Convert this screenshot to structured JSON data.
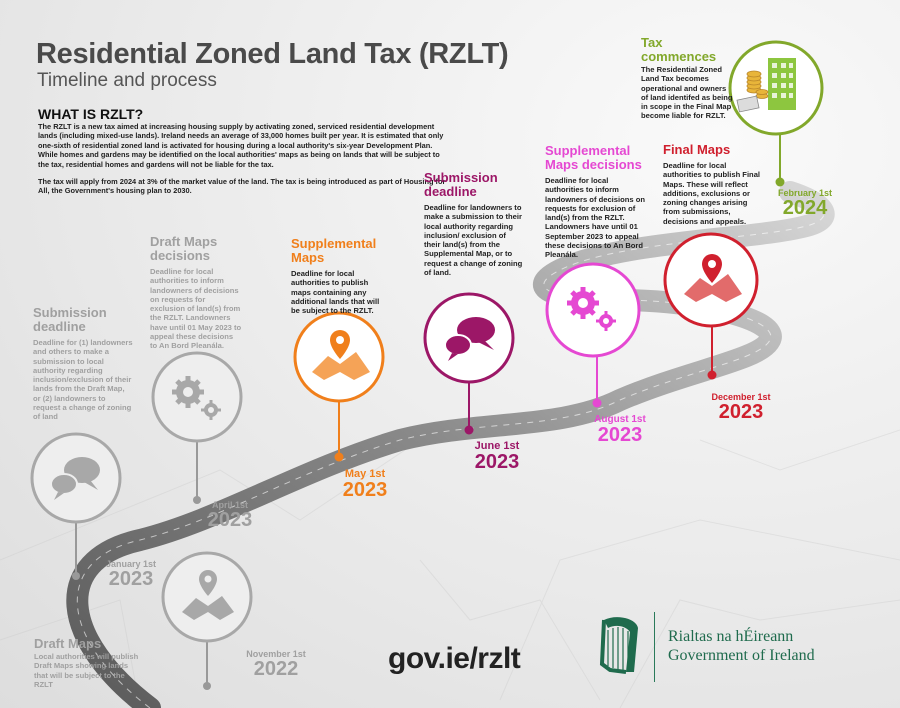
{
  "header": {
    "title": "Residential Zoned Land Tax (RZLT)",
    "subtitle": "Timeline and process"
  },
  "intro": {
    "heading": "WHAT IS RZLT?",
    "paragraph_1": "The RZLT is a new tax aimed at increasing housing supply by activating zoned, serviced residential development lands (including mixed-use lands). Ireland needs an average of 33,000 homes built per year. It is estimated that only one-sixth of residential zoned land is activated for housing during a local authority's six-year Development Plan. While homes and gardens may be identified on the local authorities' maps as being on lands that will be subject to the tax, residential homes and gardens will not be liable for the tax.",
    "paragraph_2": "The tax will apply from 2024 at 3% of the market value of the land. The tax is being introduced as part of Housing for All, the Government's housing plan to 2030."
  },
  "milestones": {
    "draft_maps": {
      "title": "Draft Maps",
      "desc": "Local authorities will publish Draft Maps showing lands that will be subject to the RZLT",
      "date": "November 1st",
      "year": "2022",
      "icon": "map-pin-icon",
      "color": "#a0a0a0"
    },
    "submission_1": {
      "title": "Submission deadline",
      "desc": "Deadline for (1) landowners and others to make a submission to local authority regarding inclusion/exclusion of their lands from the Draft Map, or (2) landowners to request a change of zoning of land",
      "date": "January 1st",
      "year": "2023",
      "icon": "speech-bubbles-icon",
      "color": "#a0a0a0"
    },
    "draft_decisions": {
      "title": "Draft Maps decisions",
      "desc": "Deadline for local authorities to inform landowners of decisions on requests for exclusion of land(s) from the RZLT. Landowners have until 01 May 2023 to appeal these decisions to An Bord Pleanála.",
      "date": "April 1st",
      "year": "2023",
      "icon": "gears-icon",
      "color": "#a0a0a0"
    },
    "supplemental_maps": {
      "title": "Supplemental Maps",
      "desc": "Deadline for local authorities to publish maps containing any additional lands that will be subject to the RZLT.",
      "date": "May 1st",
      "year": "2023",
      "icon": "map-pin-icon",
      "color": "#f07f1b"
    },
    "submission_2": {
      "title": "Submission deadline",
      "desc": "Deadline for landowners to make a submission to their local authority regarding inclusion/ exclusion of their land(s) from the Supplemental Map, or to request a change of zoning of land.",
      "date": "June 1st",
      "year": "2023",
      "icon": "speech-bubbles-icon",
      "color": "#9c1767"
    },
    "supplemental_decisions": {
      "title": "Supplemental Maps decisions",
      "desc": "Deadline for local authorities to inform landowners of decisions on requests for exclusion of land(s) from the RZLT. Landowners have until 01 September 2023 to appeal these decisions to An Bord Pleanála.",
      "date": "August 1st",
      "year": "2023",
      "icon": "gears-icon",
      "color": "#e548d2"
    },
    "final_maps": {
      "title": "Final Maps",
      "desc": "Deadline for local authorities to publish Final Maps. These will reflect additions, exclusions or zoning changes arising from submissions, decisions and appeals.",
      "date": "December 1st",
      "year": "2023",
      "icon": "map-pin-icon",
      "color": "#d0202e"
    },
    "tax_commences": {
      "title": "Tax commences",
      "desc": "The Residential Zoned Land Tax becomes operational and owners of land identifed as being in scope in the Final Map become liable for RZLT.",
      "date": "February 1st",
      "year": "2024",
      "icon": "building-coins-icon",
      "color": "#82a82b"
    }
  },
  "footer": {
    "url": "gov.ie/rzlt",
    "gov_irish": "Rialtas na hÉireann",
    "gov_english": "Government of Ireland",
    "logo_icon": "harp-icon"
  }
}
